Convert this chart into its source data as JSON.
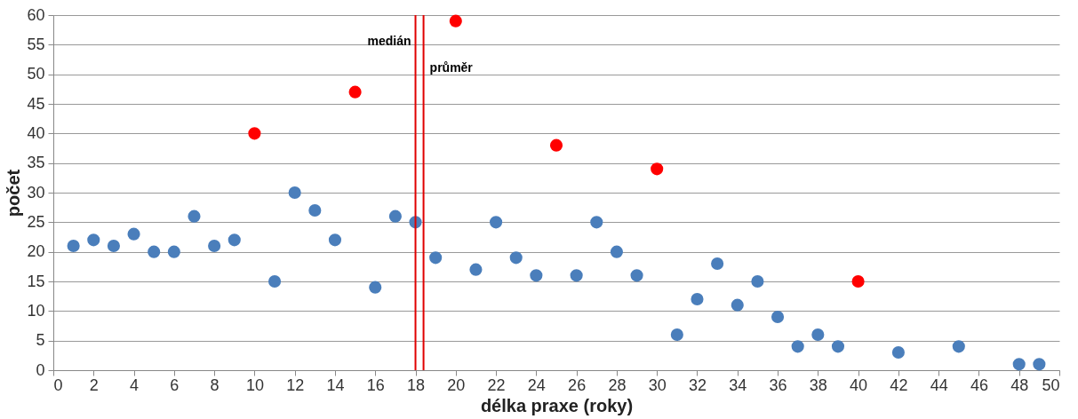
{
  "chart_data": {
    "type": "scatter",
    "xlabel": "délka praxe (roky)",
    "ylabel": "počet",
    "series": [
      {
        "color": "#4a7ebb",
        "x": [
          1,
          2,
          3,
          4,
          5,
          6,
          7,
          8,
          9,
          11,
          12,
          13,
          14,
          16,
          17,
          18,
          19,
          21,
          22,
          23,
          24,
          26,
          27,
          28,
          29,
          31,
          32,
          33,
          34,
          35,
          36,
          37,
          38,
          39,
          42,
          45,
          48,
          49
        ],
        "values": [
          21,
          22,
          21,
          23,
          20,
          20,
          26,
          21,
          22,
          15,
          30,
          27,
          22,
          14,
          26,
          25,
          19,
          17,
          25,
          19,
          16,
          16,
          25,
          20,
          16,
          6,
          12,
          18,
          11,
          15,
          9,
          4,
          6,
          4,
          3,
          4,
          1,
          1
        ]
      },
      {
        "color": "#ff0000",
        "x": [
          10,
          15,
          20,
          25,
          30,
          40
        ],
        "values": [
          40,
          47,
          59,
          38,
          34,
          15
        ]
      }
    ],
    "xlim": [
      0,
      50
    ],
    "xticks": [
      0,
      2,
      4,
      6,
      8,
      10,
      12,
      14,
      16,
      18,
      20,
      22,
      24,
      26,
      28,
      30,
      32,
      34,
      36,
      38,
      40,
      42,
      44,
      46,
      48,
      50
    ],
    "ylim": [
      0,
      60
    ],
    "yticks": [
      0,
      5,
      10,
      15,
      20,
      25,
      30,
      35,
      40,
      45,
      50,
      55,
      60
    ],
    "ref_lines": [
      {
        "axis": "x",
        "value": 18,
        "label": "medián",
        "color": "#e00000"
      },
      {
        "axis": "x",
        "value": 18.4,
        "label": "průměr",
        "color": "#e00000"
      }
    ],
    "grid": "y",
    "marker": "circle",
    "legend": false
  }
}
